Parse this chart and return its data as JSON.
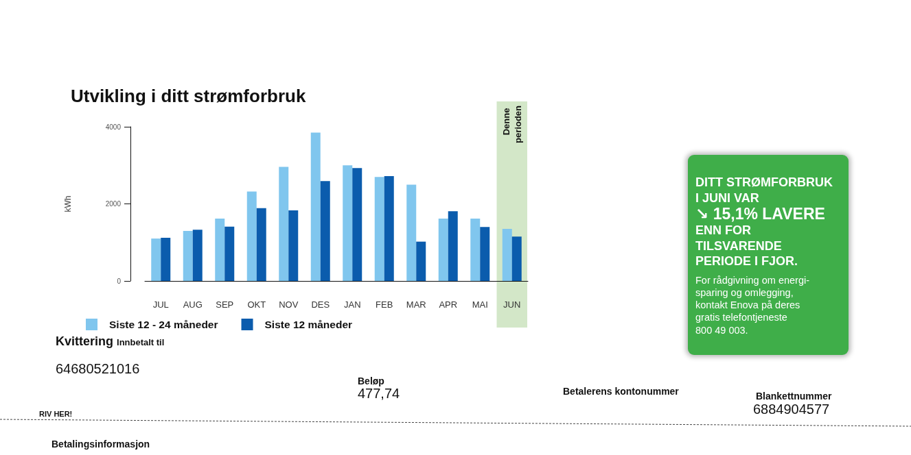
{
  "chart_data": [
    {
      "type": "bar",
      "title": "Utvikling i ditt strømforbruk",
      "ylabel": "kWh",
      "categories": [
        "JUL",
        "AUG",
        "SEP",
        "OKT",
        "NOV",
        "DES",
        "JAN",
        "FEB",
        "MAR",
        "APR",
        "MAI",
        "JUN"
      ],
      "series": [
        {
          "name": "Siste 12 - 24 måneder",
          "color": "#80c6ee",
          "values": [
            1100,
            1300,
            1620,
            2320,
            2960,
            3850,
            3000,
            2700,
            2500,
            1620,
            1620,
            1350
          ]
        },
        {
          "name": "Siste 12 måneder",
          "color": "#0b5cad",
          "values": [
            1120,
            1330,
            1410,
            1890,
            1830,
            2590,
            2930,
            2720,
            1020,
            1810,
            1400,
            1150
          ]
        }
      ],
      "ylim": [
        0,
        4000
      ],
      "yticks": [
        0,
        2000,
        4000
      ],
      "grid": false,
      "legend": "bottom left",
      "bands": [
        {
          "axis": "x",
          "from": "JUN",
          "to": "JUN",
          "label": "Denne perioden",
          "color": "#d3e7c8"
        }
      ]
    },
    {
      "type": "other",
      "color": "#3fae49",
      "title": "DITT STRØMFORBRUK\nI JUNI VAR\n↘ 15,1% LAVERE\nENN FOR\nTILSVARENDE\nPERIODE I FJOR.",
      "annotations": [
        "For rådgivning om energi-\nsparing og omlegging,\nkontakt Enova på deres\ngratis telefontjeneste\n800 49 003."
      ]
    },
    {
      "type": "other",
      "title": "Kvittering",
      "subtitle": "Innbetalt til",
      "annotations": [
        "64680521016",
        "Beløp",
        "477,74",
        "Betalerens kontonummer",
        "Blankettnummer",
        "6884904577",
        "RIV HER!",
        "Betalingsinformasjon"
      ]
    }
  ]
}
